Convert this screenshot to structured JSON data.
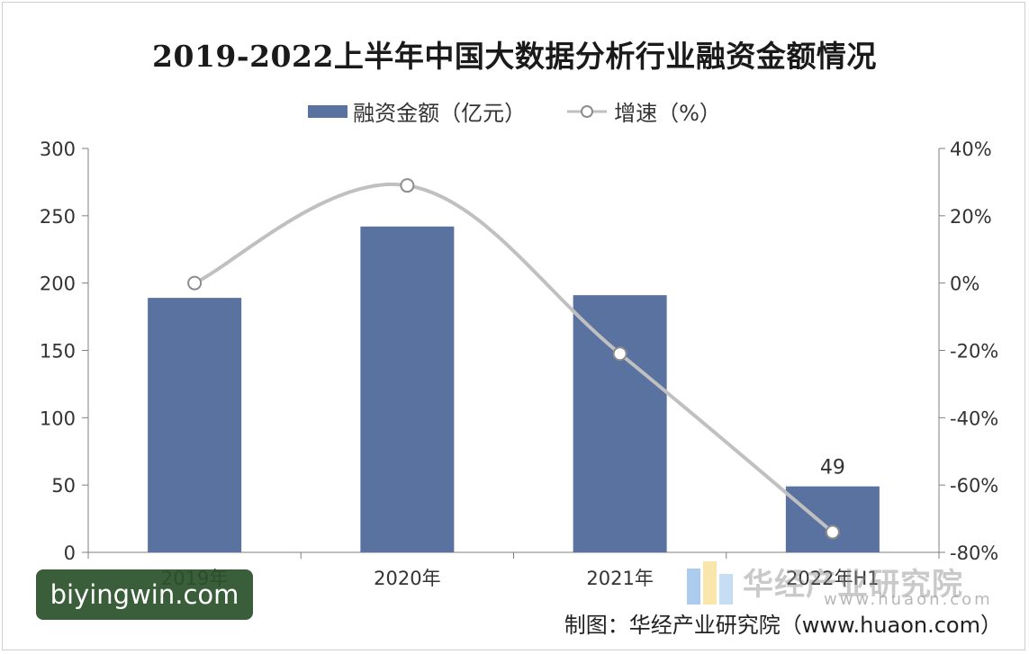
{
  "chart_data": {
    "type": "bar",
    "title": "2019-2022上半年中国大数据分析行业融资金额情况",
    "categories": [
      "2019年",
      "2020年",
      "2021年",
      "2022年H1"
    ],
    "series": [
      {
        "name": "融资金额（亿元）",
        "type": "bar",
        "axis": "left",
        "values": [
          189,
          242,
          191,
          49
        ]
      },
      {
        "name": "增速（%）",
        "type": "line",
        "axis": "right",
        "values": [
          0,
          29,
          -21,
          -74
        ]
      }
    ],
    "data_labels": [
      null,
      null,
      null,
      "49"
    ],
    "y_left": {
      "min": 0,
      "max": 300,
      "ticks": [
        "0",
        "50",
        "100",
        "150",
        "200",
        "250",
        "300"
      ]
    },
    "y_right": {
      "min": -80,
      "max": 40,
      "ticks": [
        "-80%",
        "-60%",
        "-40%",
        "-20%",
        "0%",
        "20%",
        "40%"
      ]
    },
    "grid": false,
    "legend_position": "top-center",
    "colors": {
      "bar": "#5a72a0",
      "line": "#c0c0c0",
      "marker_fill": "#ffffff",
      "marker_stroke": "#8c8c8c"
    }
  },
  "watermark": {
    "text": "biyingwin.com"
  },
  "logo": {
    "text": "华经产业研究院",
    "url": "www.huaon.com"
  },
  "source": "制图：华经产业研究院（www.huaon.com）"
}
